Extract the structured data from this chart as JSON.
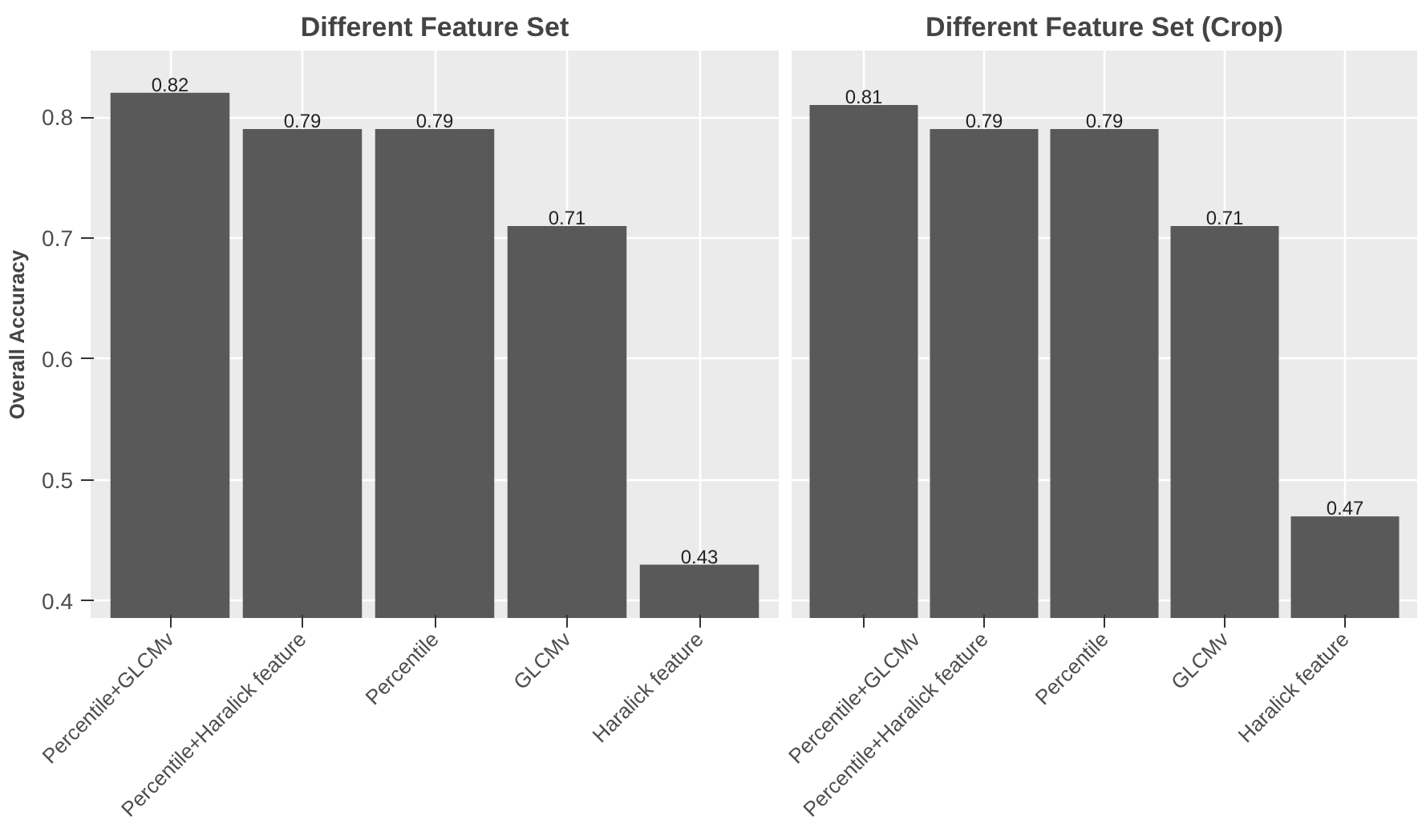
{
  "chart_data": [
    {
      "type": "bar",
      "title": "Different Feature Set",
      "ylabel": "Overall Accuracy",
      "categories": [
        "Percentile+GLCMv",
        "Percentile+Haralick feature",
        "Percentile",
        "GLCMv",
        "Haralick feature"
      ],
      "values": [
        0.82,
        0.79,
        0.79,
        0.71,
        0.43
      ],
      "color": "#595959",
      "ylim": [
        0.386,
        0.855
      ],
      "yticks": [
        0.4,
        0.5,
        0.6,
        0.7,
        0.8
      ],
      "grid": true,
      "data_labels": true
    },
    {
      "type": "bar",
      "title": "Different Feature Set (Crop)",
      "categories": [
        "Percentile+GLCMv",
        "Percentile+Haralick feature",
        "Percentile",
        "GLCMv",
        "Haralick feature"
      ],
      "values": [
        0.81,
        0.79,
        0.79,
        0.71,
        0.47
      ],
      "color": "#595959",
      "ylim": [
        0.386,
        0.855
      ],
      "yticks": [
        0.4,
        0.5,
        0.6,
        0.7,
        0.8
      ],
      "grid": true,
      "data_labels": true,
      "tick_labels": "x"
    }
  ]
}
